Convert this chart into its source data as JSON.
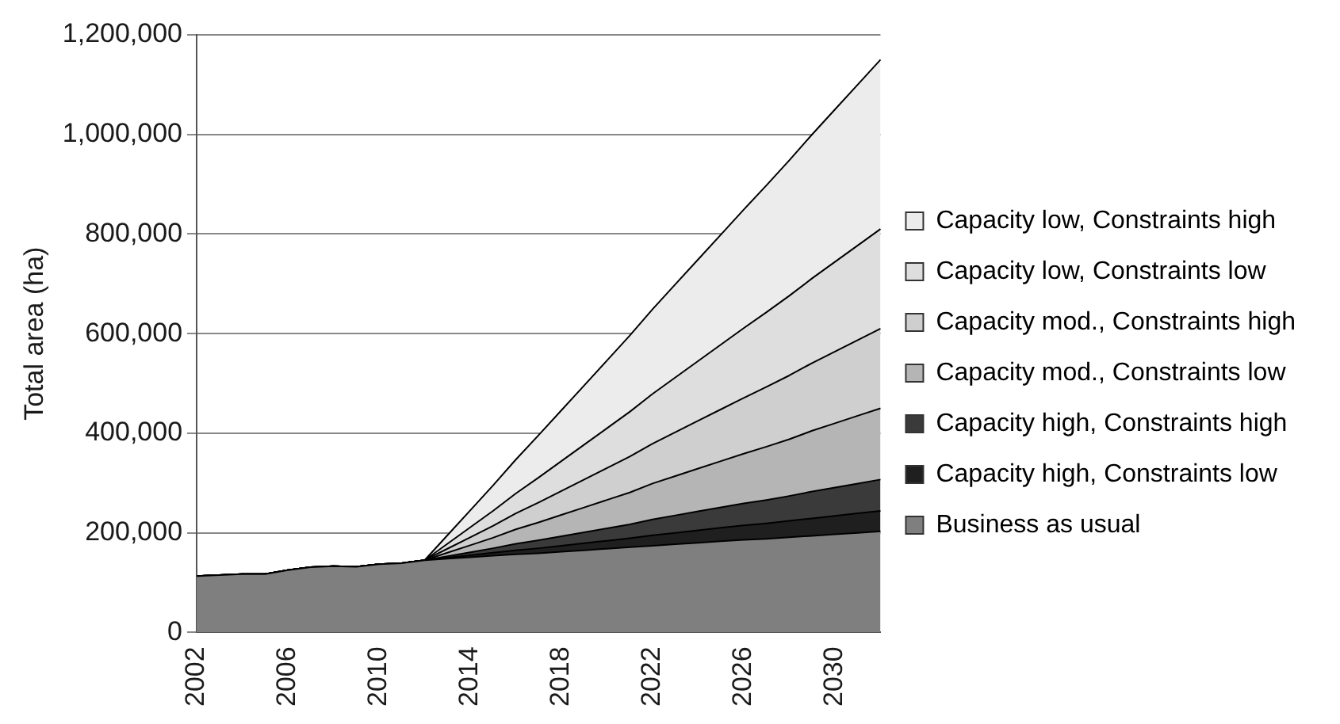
{
  "chart_data": {
    "type": "area",
    "ylabel": "Total area (ha)",
    "stacked": true,
    "grid": "y",
    "legend": "right",
    "categories": [
      "2002",
      null,
      null,
      null,
      "2006",
      null,
      null,
      null,
      "2010",
      null,
      null,
      null,
      "2014",
      null,
      null,
      null,
      "2018",
      null,
      null,
      null,
      "2022",
      null,
      null,
      null,
      "2026",
      null,
      null,
      null,
      "2030",
      null,
      null
    ],
    "ylim": [
      0,
      1200000
    ],
    "yticks": [
      0,
      {
        "value": 200000,
        "label": "200,000"
      },
      {
        "value": 400000,
        "label": "400,000"
      },
      {
        "value": 600000,
        "label": "600,000"
      },
      {
        "value": 800000,
        "label": "800,000"
      },
      {
        "value": 1000000,
        "label": "1,000,000"
      },
      {
        "value": 1200000,
        "label": "1,200,000"
      }
    ],
    "series": [
      {
        "name": "Business as usual",
        "color": "#7f7f7f",
        "values": [
          113000,
          115000,
          117000,
          117000,
          125000,
          131000,
          133000,
          132000,
          137000,
          139000,
          145000,
          148000,
          151000,
          154000,
          157000,
          159000,
          162000,
          165000,
          168000,
          171000,
          174000,
          177000,
          180000,
          183000,
          186000,
          188000,
          191000,
          194000,
          197000,
          200000,
          203000
        ]
      },
      {
        "name": "Capacity high, Constraints low",
        "color": "#1f1f1f",
        "values": [
          0,
          0,
          0,
          0,
          0,
          0,
          0,
          0,
          0,
          0,
          0,
          2000,
          4000,
          6000,
          8000,
          10000,
          12000,
          14000,
          16000,
          18000,
          21000,
          23000,
          25000,
          27000,
          29000,
          31000,
          33000,
          35000,
          37000,
          39000,
          41000
        ]
      },
      {
        "name": "Capacity high, Constraints high",
        "color": "#3a3a3a",
        "values": [
          0,
          0,
          0,
          0,
          0,
          0,
          0,
          0,
          0,
          0,
          0,
          3000,
          6000,
          9000,
          13000,
          16000,
          19000,
          22000,
          25000,
          28000,
          32000,
          35000,
          38000,
          41000,
          44000,
          47000,
          50000,
          54000,
          57000,
          60000,
          63000
        ]
      },
      {
        "name": "Capacity mod., Constraints low",
        "color": "#b5b5b5",
        "values": [
          0,
          0,
          0,
          0,
          0,
          0,
          0,
          0,
          0,
          0,
          0,
          7000,
          14000,
          21000,
          29000,
          36000,
          43000,
          50000,
          57000,
          64000,
          72000,
          79000,
          86000,
          93000,
          100000,
          107000,
          114000,
          122000,
          129000,
          136000,
          143000
        ]
      },
      {
        "name": "Capacity mod., Constraints high",
        "color": "#cfcfcf",
        "values": [
          0,
          0,
          0,
          0,
          0,
          0,
          0,
          0,
          0,
          0,
          0,
          8000,
          16000,
          24000,
          32000,
          40000,
          48000,
          56000,
          64000,
          72000,
          80000,
          88000,
          96000,
          104000,
          112000,
          120000,
          128000,
          136000,
          144000,
          152000,
          160000
        ]
      },
      {
        "name": "Capacity low, Constraints low",
        "color": "#dedede",
        "values": [
          0,
          0,
          0,
          0,
          0,
          0,
          0,
          0,
          0,
          0,
          0,
          10000,
          20000,
          30000,
          40000,
          50000,
          60000,
          70000,
          80000,
          90000,
          100000,
          110000,
          120000,
          130000,
          140000,
          150000,
          160000,
          170000,
          180000,
          190000,
          200000
        ]
      },
      {
        "name": "Capacity low, Constraints high",
        "color": "#ececec",
        "values": [
          0,
          0,
          0,
          0,
          0,
          0,
          0,
          0,
          0,
          0,
          0,
          17000,
          34000,
          51000,
          68000,
          85000,
          102000,
          119000,
          136000,
          153000,
          170000,
          187000,
          204000,
          221000,
          238000,
          255000,
          272000,
          289000,
          306000,
          323000,
          340000
        ]
      }
    ]
  }
}
